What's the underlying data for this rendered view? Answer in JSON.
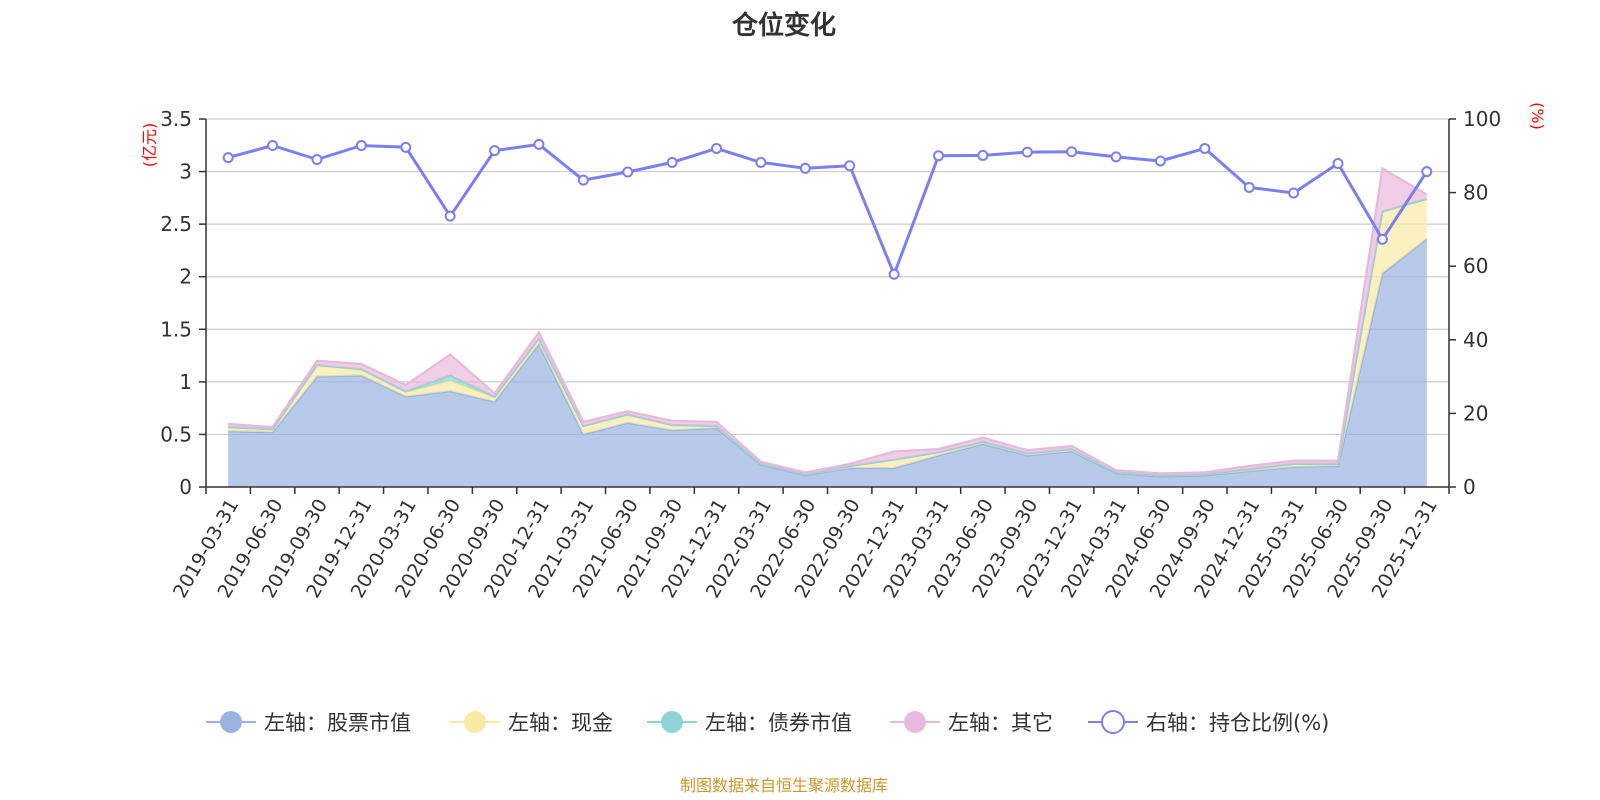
{
  "chart_data": {
    "type": "area",
    "title": "仓位变化",
    "left_axis": {
      "unit": "(亿元)",
      "ylim": [
        0,
        3.5
      ],
      "ticks": [
        "0",
        "0.5",
        "1",
        "1.5",
        "2",
        "2.5",
        "3",
        "3.5"
      ]
    },
    "right_axis": {
      "unit": "(%)",
      "ylim": [
        0,
        100
      ],
      "ticks": [
        "0",
        "20",
        "40",
        "60",
        "80",
        "100"
      ]
    },
    "categories": [
      "2019-03-31",
      "2019-06-30",
      "2019-09-30",
      "2019-12-31",
      "2020-03-31",
      "2020-06-30",
      "2020-09-30",
      "2020-12-31",
      "2021-03-31",
      "2021-06-30",
      "2021-09-30",
      "2021-12-31",
      "2022-03-31",
      "2022-06-30",
      "2022-09-30",
      "2022-12-31",
      "2023-03-31",
      "2023-06-30",
      "2023-09-30",
      "2023-12-31",
      "2024-03-31",
      "2024-06-30",
      "2024-09-30",
      "2024-12-31",
      "2025-03-31",
      "2025-06-30",
      "2025-09-30",
      "2025-12-31"
    ],
    "series": [
      {
        "name": "左轴：股票市值",
        "axis": "left",
        "stack": true,
        "color": "#9ab4e0",
        "values": [
          0.53,
          0.52,
          1.05,
          1.06,
          0.86,
          0.91,
          0.81,
          1.36,
          0.5,
          0.61,
          0.54,
          0.56,
          0.21,
          0.11,
          0.18,
          0.18,
          0.3,
          0.41,
          0.3,
          0.34,
          0.13,
          0.1,
          0.11,
          0.15,
          0.19,
          0.2,
          2.03,
          2.36
        ]
      },
      {
        "name": "左轴：现金",
        "axis": "left",
        "stack": true,
        "color": "#fae9a4",
        "values": [
          0.04,
          0.03,
          0.11,
          0.05,
          0.04,
          0.1,
          0.04,
          0.05,
          0.08,
          0.08,
          0.05,
          0.02,
          0.01,
          0.01,
          0.02,
          0.08,
          0.03,
          0.02,
          0.02,
          0.02,
          0.01,
          0.01,
          0.01,
          0.02,
          0.03,
          0.02,
          0.59,
          0.38
        ]
      },
      {
        "name": "左轴：债券市值",
        "axis": "left",
        "stack": true,
        "color": "#8fd3d6",
        "values": [
          0,
          0,
          0,
          0.01,
          0.01,
          0.05,
          0.01,
          0,
          0,
          0,
          0,
          0,
          0,
          0,
          0,
          0,
          0,
          0,
          0,
          0,
          0,
          0,
          0,
          0,
          0,
          0,
          0,
          0
        ]
      },
      {
        "name": "左轴：其它",
        "axis": "left",
        "stack": true,
        "color": "#e8b9dc",
        "values": [
          0.03,
          0.02,
          0.04,
          0.05,
          0.06,
          0.2,
          0.03,
          0.06,
          0.04,
          0.03,
          0.04,
          0.04,
          0.02,
          0.02,
          0.02,
          0.08,
          0.03,
          0.04,
          0.03,
          0.03,
          0.02,
          0.02,
          0.02,
          0.03,
          0.03,
          0.03,
          0.41,
          0.04
        ]
      },
      {
        "name": "右轴：持仓比例(%)",
        "axis": "right",
        "stack": false,
        "color": "#7b7ff0",
        "values": [
          89.5,
          92.8,
          89.0,
          92.8,
          92.3,
          73.6,
          91.4,
          93.1,
          83.4,
          85.6,
          88.2,
          92.0,
          88.2,
          86.6,
          87.3,
          57.8,
          90.0,
          90.1,
          91.0,
          91.1,
          89.7,
          88.6,
          92.0,
          81.4,
          79.9,
          87.9,
          67.3,
          85.7
        ]
      }
    ],
    "legend_placement": "bottom",
    "grid": true,
    "source_text": "制图数据来自恒生聚源数据库"
  }
}
